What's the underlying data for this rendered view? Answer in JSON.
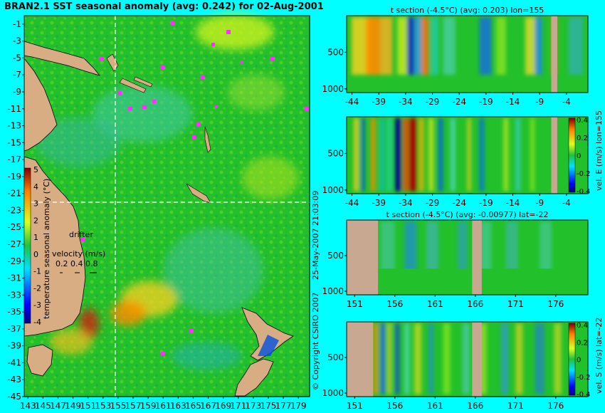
{
  "main_title": "BRAN2.1 SST seasonal anomaly (avg: 0.242) for 02-Aug-2001",
  "copyright": "© Copyright CSIRO 2007",
  "timestamp": "25-May-2007 21:03:09",
  "chart_data": [
    {
      "id": "sst-map",
      "type": "heatmap",
      "title": "BRAN2.1 SST seasonal anomaly (avg: 0.242) for 02-Aug-2001",
      "x_ticks": [
        143,
        145,
        147,
        149,
        151,
        153,
        155,
        157,
        159,
        161,
        163,
        165,
        167,
        169,
        171,
        173,
        175,
        177,
        179
      ],
      "y_ticks": [
        -1,
        -3,
        -5,
        -7,
        -9,
        -11,
        -13,
        -15,
        -17,
        -19,
        -21,
        -23,
        -25,
        -27,
        -29,
        -31,
        -33,
        -35,
        -37,
        -39,
        -41,
        -43,
        -45
      ],
      "xlim": [
        142.5,
        180.5
      ],
      "ylim": [
        -45,
        0
      ],
      "section_lon": 155,
      "section_lat": -22,
      "colorbar": {
        "label": "temperature seasonal anomaly (°C)",
        "ticks": [
          5,
          4,
          3,
          2,
          1,
          0,
          -1,
          -2,
          -3,
          -4
        ],
        "range": [
          -4,
          5
        ]
      },
      "legend": {
        "drifter_label": "drifter",
        "velocity_label": "velocity (m/s)",
        "velocity_ticks": [
          "0.2",
          "0.4",
          "0.8"
        ]
      }
    },
    {
      "id": "t-section-lon",
      "type": "heatmap",
      "title": "t section (-4.5°C) (avg: 0.203) lon=155",
      "x_ticks": [
        -44,
        -39,
        -34,
        -29,
        -24,
        -19,
        -14,
        -9,
        -4
      ],
      "y_ticks": [
        500,
        1000
      ],
      "xlim": [
        -45,
        0
      ],
      "ylim": [
        1050,
        0
      ]
    },
    {
      "id": "vel-e-section",
      "type": "heatmap",
      "title": "",
      "ylabel_right": "vel. E (m/s) lon=155",
      "x_ticks": [
        -44,
        -39,
        -34,
        -29,
        -24,
        -19,
        -14,
        -9,
        -4
      ],
      "y_ticks": [
        500,
        1000
      ],
      "xlim": [
        -45,
        0
      ],
      "ylim": [
        1050,
        0
      ],
      "colorbar": {
        "ticks": [
          "0.4",
          "0.2",
          "0",
          "-0.2",
          "-0.4"
        ],
        "range": [
          -0.4,
          0.4
        ]
      }
    },
    {
      "id": "t-section-lat",
      "type": "heatmap",
      "title": "t section (-4.5°C) (avg: -0.00977) lat=-22",
      "x_ticks": [
        151,
        156,
        161,
        166,
        171,
        176
      ],
      "y_ticks": [
        500,
        1000
      ],
      "xlim": [
        150,
        180
      ],
      "ylim": [
        1050,
        0
      ]
    },
    {
      "id": "vel-s-section",
      "type": "heatmap",
      "title": "",
      "ylabel_right": "vel. S (m/s) lat=-22",
      "x_ticks": [
        151,
        156,
        161,
        166,
        171,
        176
      ],
      "y_ticks": [
        500,
        1000
      ],
      "xlim": [
        150,
        180
      ],
      "ylim": [
        1050,
        0
      ],
      "colorbar": {
        "ticks": [
          "0.4",
          "0.2",
          "0",
          "-0.2",
          "-0.4"
        ],
        "range": [
          -0.4,
          0.4
        ]
      }
    }
  ]
}
